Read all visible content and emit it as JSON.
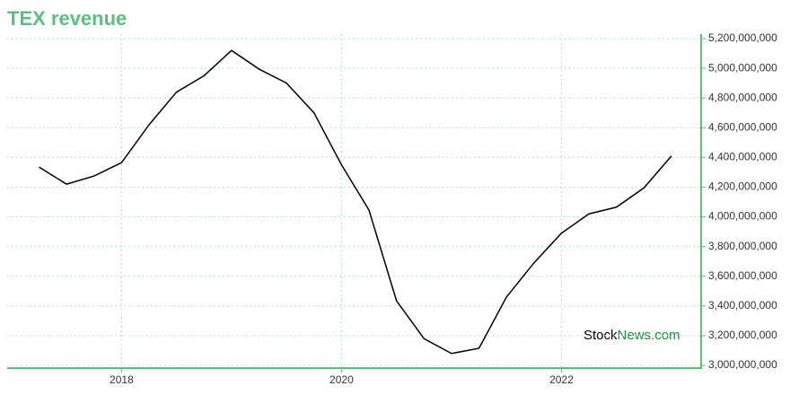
{
  "chart_data": {
    "type": "line",
    "title": "TEX revenue",
    "x": [
      2017.25,
      2017.5,
      2017.75,
      2018.0,
      2018.25,
      2018.5,
      2018.75,
      2019.0,
      2019.25,
      2019.5,
      2019.75,
      2020.0,
      2020.25,
      2020.5,
      2020.75,
      2021.0,
      2021.25,
      2021.5,
      2021.75,
      2022.0,
      2022.25,
      2022.5,
      2022.75,
      2023.0
    ],
    "series": [
      {
        "color": "#000000",
        "values": [
          4335000000,
          4220000000,
          4275000000,
          4365000000,
          4620000000,
          4840000000,
          4950000000,
          5120000000,
          4995000000,
          4900000000,
          4700000000,
          4350000000,
          4045000000,
          3435000000,
          3180000000,
          3080000000,
          3115000000,
          3460000000,
          3690000000,
          3890000000,
          4020000000,
          4065000000,
          4195000000,
          4410000000
        ]
      }
    ],
    "xlim": [
      2016.96,
      2023.27
    ],
    "xticks": [
      2018,
      2020,
      2022
    ],
    "ylim": [
      3000000000,
      5200000000
    ],
    "yticks": [
      {
        "value": 3000000000,
        "label": "3,000,000,000"
      },
      {
        "value": 3200000000,
        "label": "3,200,000,000"
      },
      {
        "value": 3400000000,
        "label": "3,400,000,000"
      },
      {
        "value": 3600000000,
        "label": "3,600,000,000"
      },
      {
        "value": 3800000000,
        "label": "3,800,000,000"
      },
      {
        "value": 4000000000,
        "label": "4,000,000,000"
      },
      {
        "value": 4200000000,
        "label": "4,200,000,000"
      },
      {
        "value": 4400000000,
        "label": "4,400,000,000"
      },
      {
        "value": 4600000000,
        "label": "4,600,000,000"
      },
      {
        "value": 4800000000,
        "label": "4,800,000,000"
      },
      {
        "value": 5000000000,
        "label": "5,000,000,000"
      },
      {
        "value": 5200000000,
        "label": "5,200,000,000"
      }
    ],
    "grid": true,
    "axis_color": "#5cbf7f",
    "watermark": [
      "Stock",
      "News.com"
    ]
  }
}
